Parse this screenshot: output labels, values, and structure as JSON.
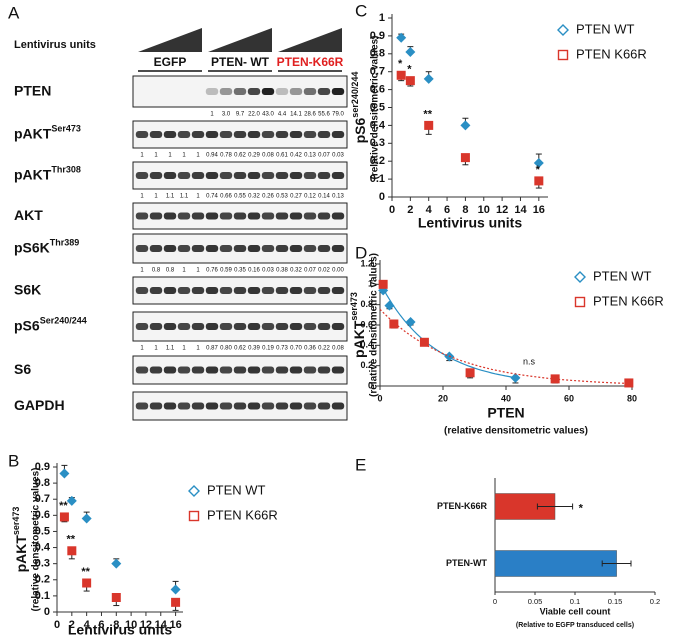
{
  "blot": {
    "panel": "A",
    "lentivirus_label": "Lentivirus units",
    "groups": [
      {
        "label": "EGFP"
      },
      {
        "label": "PTEN- WT"
      },
      {
        "label": "PTEN-K66R",
        "color": "#e02020"
      }
    ],
    "rows": [
      {
        "label": "PTEN",
        "numbers": [
          null,
          null,
          null,
          null,
          null,
          "1",
          "3.0",
          "9.7",
          "22.0",
          "43.0",
          "4.4",
          "14.1",
          "28.6",
          "55.6",
          "79.0"
        ]
      },
      {
        "label": "pAKT",
        "sup": "Ser473",
        "numbers": [
          "1",
          "1",
          "1",
          "1",
          "1",
          "0.94",
          "0.78",
          "0.62",
          "0.29",
          "0.08",
          "0.61",
          "0.42",
          "0.13",
          "0.07",
          "0.03"
        ]
      },
      {
        "label": "pAKT",
        "sup": "Thr308",
        "numbers": [
          "1",
          "1",
          "1.1",
          "1.1",
          "1",
          "0.74",
          "0.66",
          "0.55",
          "0.32",
          "0.26",
          "0.53",
          "0.27",
          "0.12",
          "0.14",
          "0.13"
        ]
      },
      {
        "label": "AKT"
      },
      {
        "label": "pS6K",
        "sup": "Thr389",
        "numbers": [
          "1",
          "0.8",
          "0.8",
          "1",
          "1",
          "0.76",
          "0.59",
          "0.35",
          "0.16",
          "0.03",
          "0.38",
          "0.32",
          "0.07",
          "0.02",
          "0.00"
        ]
      },
      {
        "label": "S6K"
      },
      {
        "label": "pS6",
        "sup": "Ser240/244",
        "numbers": [
          "1",
          "1",
          "1.1",
          "1",
          "1",
          "0.87",
          "0.80",
          "0.62",
          "0.39",
          "0.19",
          "0.73",
          "0.70",
          "0.36",
          "0.22",
          "0.08"
        ]
      },
      {
        "label": "S6"
      },
      {
        "label": "GAPDH"
      }
    ]
  },
  "chart_data": [
    {
      "panel": "B",
      "type": "scatter",
      "y_label": "pAKT",
      "y_label_sup": "ser473",
      "y_sublabel": "(relative densitometric values)",
      "x_label": "Lentivirus units",
      "x": [
        1,
        2,
        4,
        8,
        16
      ],
      "xlim": [
        0,
        17
      ],
      "xticks": [
        0,
        2,
        4,
        6,
        8,
        10,
        12,
        14,
        16
      ],
      "ylim": [
        0,
        0.9
      ],
      "yticks": [
        0,
        0.1,
        0.2,
        0.3,
        0.4,
        0.5,
        0.6,
        0.7,
        0.8,
        0.9
      ],
      "legend": "upper right",
      "series": [
        {
          "name": "PTEN WT",
          "color": "#2a8fc4",
          "marker": "diamond",
          "error_direction": "up",
          "values": [
            0.86,
            0.69,
            0.58,
            0.3,
            0.14
          ],
          "errors": [
            0.05,
            0.02,
            0.04,
            0.03,
            0.05
          ]
        },
        {
          "name": "PTEN K66R",
          "color": "#d9362b",
          "marker": "square",
          "error_direction": "down",
          "values": [
            0.59,
            0.38,
            0.18,
            0.09,
            0.06
          ],
          "errors": [
            0.03,
            0.05,
            0.05,
            0.05,
            0.05
          ],
          "point_labels": [
            "**",
            "**",
            "**",
            null,
            null
          ]
        }
      ]
    },
    {
      "panel": "C",
      "type": "scatter",
      "y_label": "pS6",
      "y_label_sup": "ser240/244",
      "y_sublabel": "(relative densitometric values)",
      "x_label": "Lentivirus units",
      "x": [
        1,
        2,
        4,
        8,
        16
      ],
      "xlim": [
        0,
        17
      ],
      "xticks": [
        0,
        2,
        4,
        6,
        8,
        10,
        12,
        14,
        16
      ],
      "ylim": [
        0,
        1
      ],
      "yticks": [
        0,
        0.1,
        0.2,
        0.3,
        0.4,
        0.5,
        0.6,
        0.7,
        0.8,
        0.9,
        1
      ],
      "legend": "upper right",
      "series": [
        {
          "name": "PTEN WT",
          "color": "#2a8fc4",
          "marker": "diamond",
          "error_direction": "up",
          "values": [
            0.89,
            0.81,
            0.66,
            0.4,
            0.19
          ],
          "errors": [
            0.02,
            0.03,
            0.04,
            0.04,
            0.05
          ]
        },
        {
          "name": "PTEN K66R",
          "color": "#d9362b",
          "marker": "square",
          "error_direction": "down",
          "values": [
            0.68,
            0.65,
            0.4,
            0.22,
            0.09
          ],
          "errors": [
            0.03,
            0.03,
            0.05,
            0.04,
            0.04
          ],
          "point_labels": [
            "*",
            "*",
            "**",
            null,
            "*"
          ]
        }
      ]
    },
    {
      "panel": "D",
      "type": "scatter",
      "y_label": "pAKT",
      "y_label_sup": "ser473",
      "y_sublabel": "(relative densitometric values)",
      "x_label": "PTEN",
      "x_sublabel": "(relative densitometric values)",
      "xlim": [
        0,
        80
      ],
      "xticks": [
        0,
        20,
        40,
        60,
        80
      ],
      "ylim": [
        0,
        1.2
      ],
      "yticks": [
        0,
        0.2,
        0.4,
        0.6,
        0.8,
        1,
        1.2
      ],
      "legend": "upper right",
      "trendline": "exponential",
      "annotation": "n.s",
      "series": [
        {
          "name": "PTEN WT",
          "color": "#2a8fc4",
          "marker": "diamond",
          "error_direction": "down",
          "x": [
            1,
            3,
            9.7,
            22,
            43
          ],
          "values": [
            0.94,
            0.79,
            0.63,
            0.29,
            0.08
          ],
          "errors": [
            0.02,
            0.03,
            0.03,
            0.04,
            0.05
          ]
        },
        {
          "name": "PTEN K66R",
          "color": "#d9362b",
          "marker": "square",
          "error_direction": "down",
          "line_style": "dotted",
          "x": [
            1,
            4.4,
            14.1,
            28.6,
            55.6,
            79
          ],
          "values": [
            1.0,
            0.61,
            0.43,
            0.13,
            0.07,
            0.03
          ],
          "errors": [
            0.02,
            0.04,
            0.03,
            0.05,
            0.04,
            0.03
          ]
        }
      ]
    },
    {
      "panel": "E",
      "type": "hbar",
      "x_label": "Viable cell count",
      "x_sublabel": "(Relative to EGFP transduced cells)",
      "categories": [
        "PTEN-K66R",
        "PTEN-WT"
      ],
      "values": [
        0.075,
        0.152
      ],
      "errors": [
        0.022,
        0.018
      ],
      "colors": [
        "#d9362b",
        "#2a7fc6"
      ],
      "point_labels": [
        "*",
        null
      ],
      "xlim": [
        0,
        0.2
      ],
      "xticks": [
        0,
        0.05,
        0.1,
        0.15,
        0.2
      ]
    }
  ]
}
